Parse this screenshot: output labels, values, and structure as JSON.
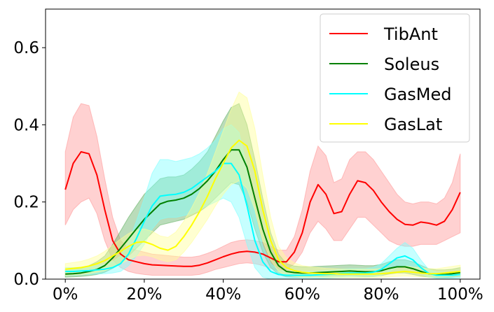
{
  "chart_data": {
    "type": "line",
    "title": "",
    "xlabel": "",
    "ylabel": "",
    "xlim": [
      -5,
      105
    ],
    "ylim": [
      0,
      0.7
    ],
    "xticks": [
      0,
      20,
      40,
      60,
      80,
      100
    ],
    "xtick_labels": [
      "0%",
      "20%",
      "40%",
      "60%",
      "80%",
      "100%"
    ],
    "yticks": [
      0.0,
      0.2,
      0.4,
      0.6
    ],
    "ytick_labels": [
      "0.0",
      "0.2",
      "0.4",
      "0.6"
    ],
    "grid": false,
    "legend_position": "top-right",
    "x": [
      0,
      2,
      4,
      6,
      8,
      10,
      12,
      14,
      16,
      18,
      20,
      22,
      24,
      26,
      28,
      30,
      32,
      34,
      36,
      38,
      40,
      42,
      44,
      46,
      48,
      50,
      52,
      54,
      56,
      58,
      60,
      62,
      64,
      66,
      68,
      70,
      72,
      74,
      76,
      78,
      80,
      82,
      84,
      86,
      88,
      90,
      92,
      94,
      96,
      98,
      100
    ],
    "series": [
      {
        "name": "TibAnt",
        "color": "#ff0000",
        "band_color": "#ff9999",
        "mean": [
          0.232,
          0.3,
          0.33,
          0.325,
          0.27,
          0.18,
          0.1,
          0.065,
          0.05,
          0.045,
          0.04,
          0.037,
          0.036,
          0.035,
          0.034,
          0.033,
          0.033,
          0.036,
          0.042,
          0.05,
          0.058,
          0.065,
          0.07,
          0.072,
          0.07,
          0.065,
          0.055,
          0.045,
          0.045,
          0.07,
          0.12,
          0.2,
          0.245,
          0.22,
          0.17,
          0.175,
          0.22,
          0.255,
          0.25,
          0.23,
          0.2,
          0.175,
          0.155,
          0.142,
          0.14,
          0.148,
          0.145,
          0.14,
          0.15,
          0.18,
          0.225
        ],
        "lower": [
          0.14,
          0.18,
          0.2,
          0.21,
          0.17,
          0.1,
          0.05,
          0.03,
          0.02,
          0.015,
          0.012,
          0.01,
          0.01,
          0.01,
          0.01,
          0.01,
          0.01,
          0.012,
          0.018,
          0.025,
          0.03,
          0.035,
          0.04,
          0.042,
          0.04,
          0.035,
          0.028,
          0.022,
          0.025,
          0.04,
          0.07,
          0.12,
          0.15,
          0.13,
          0.1,
          0.1,
          0.13,
          0.16,
          0.16,
          0.14,
          0.12,
          0.1,
          0.09,
          0.085,
          0.085,
          0.09,
          0.09,
          0.09,
          0.1,
          0.11,
          0.12
        ],
        "upper": [
          0.33,
          0.42,
          0.455,
          0.45,
          0.37,
          0.26,
          0.16,
          0.1,
          0.08,
          0.075,
          0.07,
          0.065,
          0.063,
          0.061,
          0.059,
          0.057,
          0.057,
          0.06,
          0.067,
          0.075,
          0.085,
          0.095,
          0.1,
          0.102,
          0.1,
          0.095,
          0.085,
          0.075,
          0.075,
          0.11,
          0.18,
          0.28,
          0.345,
          0.32,
          0.25,
          0.26,
          0.31,
          0.33,
          0.33,
          0.31,
          0.28,
          0.25,
          0.22,
          0.2,
          0.195,
          0.2,
          0.2,
          0.195,
          0.21,
          0.25,
          0.325
        ]
      },
      {
        "name": "Soleus",
        "color": "#008000",
        "band_color": "#66b266",
        "mean": [
          0.013,
          0.014,
          0.016,
          0.02,
          0.025,
          0.035,
          0.055,
          0.08,
          0.105,
          0.13,
          0.155,
          0.175,
          0.195,
          0.202,
          0.205,
          0.21,
          0.22,
          0.235,
          0.255,
          0.28,
          0.31,
          0.335,
          0.335,
          0.29,
          0.21,
          0.13,
          0.07,
          0.035,
          0.02,
          0.017,
          0.016,
          0.016,
          0.017,
          0.018,
          0.019,
          0.02,
          0.021,
          0.02,
          0.019,
          0.019,
          0.022,
          0.028,
          0.032,
          0.032,
          0.027,
          0.02,
          0.014,
          0.012,
          0.012,
          0.014,
          0.017
        ],
        "lower": [
          0.005,
          0.006,
          0.007,
          0.009,
          0.012,
          0.018,
          0.028,
          0.04,
          0.06,
          0.08,
          0.1,
          0.12,
          0.14,
          0.145,
          0.15,
          0.155,
          0.165,
          0.175,
          0.19,
          0.21,
          0.23,
          0.25,
          0.245,
          0.2,
          0.13,
          0.07,
          0.03,
          0.012,
          0.006,
          0.005,
          0.005,
          0.005,
          0.006,
          0.007,
          0.008,
          0.008,
          0.009,
          0.008,
          0.007,
          0.007,
          0.009,
          0.013,
          0.016,
          0.016,
          0.012,
          0.008,
          0.005,
          0.004,
          0.004,
          0.005,
          0.007
        ],
        "upper": [
          0.025,
          0.026,
          0.028,
          0.035,
          0.045,
          0.06,
          0.09,
          0.125,
          0.16,
          0.19,
          0.22,
          0.24,
          0.26,
          0.265,
          0.265,
          0.27,
          0.285,
          0.305,
          0.33,
          0.37,
          0.41,
          0.445,
          0.455,
          0.4,
          0.31,
          0.21,
          0.12,
          0.065,
          0.04,
          0.034,
          0.032,
          0.032,
          0.033,
          0.034,
          0.035,
          0.036,
          0.037,
          0.036,
          0.035,
          0.035,
          0.038,
          0.045,
          0.05,
          0.05,
          0.045,
          0.036,
          0.027,
          0.024,
          0.024,
          0.026,
          0.03
        ]
      },
      {
        "name": "GasMed",
        "color": "#00ffff",
        "band_color": "#80ffff",
        "mean": [
          0.02,
          0.02,
          0.021,
          0.022,
          0.024,
          0.026,
          0.03,
          0.04,
          0.065,
          0.105,
          0.15,
          0.19,
          0.215,
          0.218,
          0.22,
          0.225,
          0.235,
          0.25,
          0.265,
          0.28,
          0.3,
          0.3,
          0.27,
          0.19,
          0.1,
          0.045,
          0.02,
          0.012,
          0.01,
          0.01,
          0.01,
          0.01,
          0.011,
          0.012,
          0.013,
          0.015,
          0.016,
          0.016,
          0.016,
          0.018,
          0.025,
          0.04,
          0.055,
          0.06,
          0.05,
          0.03,
          0.015,
          0.01,
          0.01,
          0.01,
          0.012
        ],
        "lower": [
          0.01,
          0.01,
          0.011,
          0.012,
          0.013,
          0.014,
          0.016,
          0.02,
          0.035,
          0.06,
          0.09,
          0.13,
          0.155,
          0.16,
          0.16,
          0.165,
          0.17,
          0.18,
          0.19,
          0.2,
          0.21,
          0.2,
          0.16,
          0.09,
          0.03,
          0.005,
          0.0,
          0.0,
          0.0,
          0.0,
          0.0,
          0.0,
          0.001,
          0.002,
          0.003,
          0.004,
          0.005,
          0.005,
          0.005,
          0.006,
          0.01,
          0.02,
          0.03,
          0.035,
          0.03,
          0.015,
          0.005,
          0.002,
          0.002,
          0.002,
          0.003
        ],
        "upper": [
          0.03,
          0.03,
          0.031,
          0.032,
          0.035,
          0.038,
          0.045,
          0.06,
          0.095,
          0.15,
          0.21,
          0.275,
          0.31,
          0.31,
          0.305,
          0.31,
          0.315,
          0.325,
          0.34,
          0.36,
          0.39,
          0.4,
          0.38,
          0.29,
          0.17,
          0.085,
          0.04,
          0.024,
          0.02,
          0.02,
          0.02,
          0.02,
          0.021,
          0.022,
          0.023,
          0.026,
          0.027,
          0.027,
          0.027,
          0.03,
          0.04,
          0.06,
          0.08,
          0.095,
          0.08,
          0.05,
          0.025,
          0.018,
          0.018,
          0.018,
          0.021
        ]
      },
      {
        "name": "GasLat",
        "color": "#ffff00",
        "band_color": "#ffff99",
        "mean": [
          0.026,
          0.028,
          0.03,
          0.034,
          0.04,
          0.048,
          0.06,
          0.072,
          0.085,
          0.095,
          0.097,
          0.09,
          0.08,
          0.075,
          0.085,
          0.11,
          0.14,
          0.175,
          0.215,
          0.26,
          0.3,
          0.34,
          0.36,
          0.345,
          0.28,
          0.18,
          0.1,
          0.05,
          0.03,
          0.022,
          0.018,
          0.016,
          0.015,
          0.014,
          0.014,
          0.013,
          0.013,
          0.013,
          0.013,
          0.013,
          0.014,
          0.016,
          0.018,
          0.02,
          0.018,
          0.016,
          0.014,
          0.014,
          0.016,
          0.018,
          0.02
        ],
        "lower": [
          0.01,
          0.011,
          0.012,
          0.014,
          0.018,
          0.022,
          0.03,
          0.04,
          0.05,
          0.06,
          0.062,
          0.058,
          0.05,
          0.045,
          0.05,
          0.07,
          0.095,
          0.125,
          0.155,
          0.19,
          0.22,
          0.245,
          0.255,
          0.235,
          0.18,
          0.1,
          0.05,
          0.02,
          0.01,
          0.007,
          0.005,
          0.005,
          0.005,
          0.004,
          0.004,
          0.004,
          0.004,
          0.004,
          0.004,
          0.004,
          0.005,
          0.006,
          0.007,
          0.008,
          0.007,
          0.006,
          0.005,
          0.005,
          0.006,
          0.007,
          0.008
        ],
        "upper": [
          0.04,
          0.043,
          0.046,
          0.052,
          0.06,
          0.072,
          0.088,
          0.104,
          0.118,
          0.128,
          0.13,
          0.124,
          0.112,
          0.108,
          0.122,
          0.15,
          0.185,
          0.225,
          0.275,
          0.33,
          0.385,
          0.44,
          0.485,
          0.47,
          0.39,
          0.27,
          0.16,
          0.085,
          0.055,
          0.042,
          0.035,
          0.032,
          0.03,
          0.028,
          0.027,
          0.026,
          0.026,
          0.026,
          0.026,
          0.026,
          0.027,
          0.029,
          0.031,
          0.034,
          0.031,
          0.029,
          0.027,
          0.027,
          0.03,
          0.033,
          0.036
        ]
      }
    ]
  }
}
